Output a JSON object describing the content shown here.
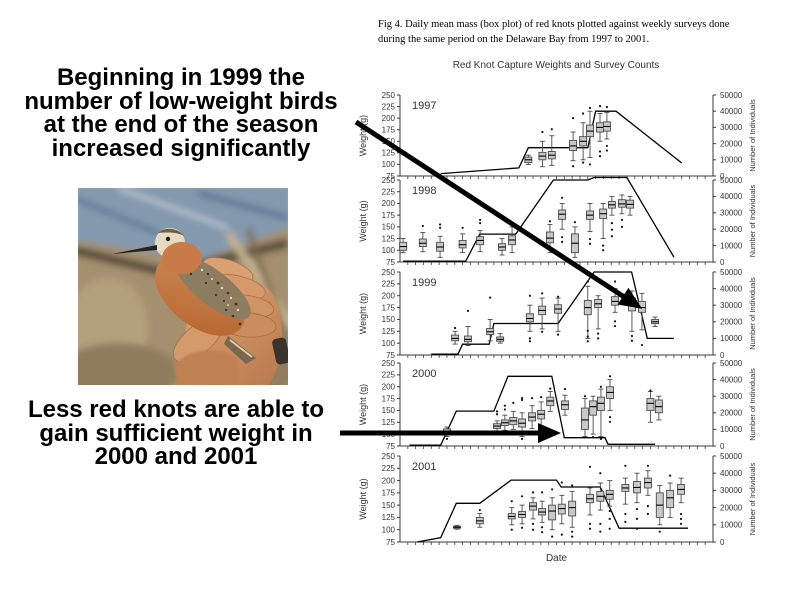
{
  "slide": {
    "caption_line1": "Fig 4. Daily mean mass (box plot) of red knots plotted against weekly surveys done",
    "caption_line2": "during the same period on the Delaware Bay from 1997 to 2001.",
    "callout_top": [
      "Beginning in 1999 the",
      "number of low-weight birds",
      "at the end of the season",
      "increased significantly"
    ],
    "callout_bottom": [
      "Less red knots are able to",
      "gain sufficient weight in",
      "2000 and 2001"
    ]
  },
  "chart_data": {
    "type": "boxplot-with-line",
    "title": "Red Knot Capture Weights and Survey Counts",
    "xlabel": "Date",
    "ylabel_left": "Weight (g)",
    "ylabel_right": "Number of Individuals",
    "weight_axis": {
      "min": 75,
      "max": 250,
      "ticks": [
        250,
        225,
        200,
        175,
        150,
        125,
        100,
        75
      ]
    },
    "count_axis": {
      "min": 0,
      "max": 50000,
      "ticks": [
        50000,
        40000,
        30000,
        20000,
        10000,
        0
      ]
    },
    "legend": "off",
    "colors": {
      "box_fill": "#c9c9c9",
      "box_stroke": "#4a4a4a",
      "survey_line": "#000000",
      "axis": "#3a3a3a",
      "text": "#333333"
    },
    "panels": [
      {
        "year": "1997",
        "survey_line": [
          [
            0.13,
            1500
          ],
          [
            0.38,
            5000
          ],
          [
            0.41,
            17500
          ],
          [
            0.6,
            17500
          ],
          [
            0.625,
            40000
          ],
          [
            0.69,
            40000
          ],
          [
            0.9,
            8000
          ]
        ],
        "boxes": [
          [
            0.41,
            100,
            104,
            110,
            116,
            120,
            []
          ],
          [
            0.455,
            95,
            110,
            118,
            126,
            150,
            [
              170
            ]
          ],
          [
            0.485,
            98,
            112,
            120,
            128,
            162,
            [
              176
            ]
          ],
          [
            0.553,
            108,
            130,
            140,
            152,
            170,
            [
              200,
              96
            ]
          ],
          [
            0.585,
            110,
            140,
            150,
            160,
            190,
            [
              210,
              104
            ]
          ],
          [
            0.607,
            115,
            160,
            172,
            185,
            215,
            [
              222,
              100
            ]
          ],
          [
            0.639,
            150,
            170,
            180,
            190,
            210,
            [
              226,
              128,
              118
            ]
          ],
          [
            0.661,
            155,
            172,
            182,
            192,
            212,
            [
              224,
              140,
              130
            ]
          ]
        ]
      },
      {
        "year": "1998",
        "survey_line": [
          [
            0.01,
            500
          ],
          [
            0.21,
            500
          ],
          [
            0.255,
            17000
          ],
          [
            0.37,
            17000
          ],
          [
            0.49,
            50000
          ],
          [
            0.6,
            50000
          ],
          [
            0.62,
            51500
          ],
          [
            0.725,
            51500
          ],
          [
            0.875,
            3000
          ]
        ],
        "boxes": [
          [
            0.01,
            95,
            100,
            108,
            117,
            125,
            []
          ],
          [
            0.073,
            97,
            108,
            115,
            124,
            138,
            [
              152
            ]
          ],
          [
            0.128,
            85,
            98,
            107,
            117,
            130,
            [
              148,
              155
            ]
          ],
          [
            0.2,
            95,
            105,
            112,
            121,
            135,
            [
              148
            ]
          ],
          [
            0.256,
            97,
            112,
            121,
            129,
            142,
            [
              158,
              165
            ]
          ],
          [
            0.326,
            90,
            100,
            107,
            114,
            125,
            [
              172
            ]
          ],
          [
            0.358,
            95,
            112,
            122,
            131,
            150,
            []
          ],
          [
            0.479,
            95,
            116,
            126,
            139,
            155,
            [
              162
            ]
          ],
          [
            0.518,
            145,
            166,
            177,
            186,
            200,
            [
              212,
              128,
              118
            ]
          ],
          [
            0.559,
            85,
            95,
            115,
            135,
            150,
            [
              160
            ]
          ],
          [
            0.607,
            140,
            166,
            175,
            184,
            200,
            [
              124,
              114
            ]
          ],
          [
            0.649,
            125,
            168,
            178,
            188,
            200,
            [
              110,
              100
            ]
          ],
          [
            0.677,
            175,
            190,
            197,
            204,
            215,
            [
              158,
              144,
              130
            ]
          ],
          [
            0.709,
            178,
            192,
            199,
            208,
            218,
            [
              165,
              150
            ]
          ],
          [
            0.735,
            175,
            190,
            198,
            207,
            215,
            []
          ]
        ]
      },
      {
        "year": "1999",
        "survey_line": [
          [
            0.1,
            500
          ],
          [
            0.185,
            500
          ],
          [
            0.2,
            6500
          ],
          [
            0.285,
            6500
          ],
          [
            0.3,
            19000
          ],
          [
            0.505,
            19000
          ],
          [
            0.62,
            50000
          ],
          [
            0.74,
            50000
          ],
          [
            0.79,
            10000
          ],
          [
            0.875,
            10000
          ]
        ],
        "boxes": [
          [
            0.176,
            98,
            105,
            110,
            117,
            125,
            [
              132
            ]
          ],
          [
            0.217,
            95,
            103,
            108,
            115,
            135,
            [
              168
            ]
          ],
          [
            0.288,
            105,
            118,
            124,
            131,
            150,
            [
              196
            ]
          ],
          [
            0.32,
            100,
            104,
            108,
            113,
            120,
            []
          ],
          [
            0.415,
            125,
            145,
            152,
            162,
            180,
            [
              200,
              110,
              104
            ]
          ],
          [
            0.454,
            130,
            160,
            169,
            178,
            195,
            [
              205,
              124
            ]
          ],
          [
            0.505,
            125,
            163,
            172,
            181,
            195,
            [
              198,
              118
            ]
          ],
          [
            0.6,
            110,
            160,
            175,
            190,
            220,
            [
              230,
              104,
              114,
              126
            ]
          ],
          [
            0.633,
            130,
            175,
            183,
            192,
            200,
            [
              120,
              110
            ]
          ],
          [
            0.687,
            165,
            180,
            188,
            198,
            215,
            [
              230,
              136,
              146
            ]
          ],
          [
            0.741,
            125,
            168,
            180,
            195,
            210,
            [
              105,
              115
            ]
          ],
          [
            0.773,
            128,
            165,
            175,
            188,
            205,
            [
              96
            ]
          ],
          [
            0.815,
            135,
            141,
            145,
            150,
            155,
            []
          ]
        ]
      },
      {
        "year": "2000",
        "survey_line": [
          [
            0.03,
            500
          ],
          [
            0.13,
            500
          ],
          [
            0.18,
            21000
          ],
          [
            0.3,
            21000
          ],
          [
            0.345,
            42000
          ],
          [
            0.485,
            42000
          ],
          [
            0.525,
            5000
          ],
          [
            0.655,
            5000
          ],
          [
            0.665,
            1000
          ],
          [
            0.815,
            1000
          ]
        ],
        "boxes": [
          [
            0.15,
            95,
            102,
            106,
            111,
            115,
            [
              90
            ]
          ],
          [
            0.31,
            105,
            112,
            117,
            122,
            128,
            [
              142,
              148
            ]
          ],
          [
            0.335,
            108,
            118,
            124,
            130,
            140,
            [
              152,
              160
            ]
          ],
          [
            0.362,
            110,
            120,
            128,
            135,
            148,
            [
              166
            ]
          ],
          [
            0.39,
            95,
            115,
            123,
            132,
            145,
            [
              172,
              176,
              90
            ]
          ],
          [
            0.422,
            112,
            128,
            136,
            145,
            160,
            [
              176,
              104
            ]
          ],
          [
            0.451,
            115,
            132,
            142,
            150,
            168,
            [
              178
            ]
          ],
          [
            0.48,
            148,
            160,
            170,
            178,
            190,
            [
              196
            ]
          ],
          [
            0.527,
            140,
            152,
            162,
            170,
            182,
            [
              195
            ]
          ],
          [
            0.591,
            95,
            110,
            130,
            155,
            175,
            [
              180
            ]
          ],
          [
            0.617,
            100,
            140,
            158,
            170,
            180,
            [
              94
            ]
          ],
          [
            0.642,
            95,
            150,
            165,
            178,
            195,
            [
              200,
              90
            ]
          ],
          [
            0.671,
            150,
            175,
            188,
            200,
            215,
            [
              222,
              126,
              136
            ]
          ],
          [
            0.8,
            125,
            150,
            165,
            175,
            190,
            [
              192
            ]
          ],
          [
            0.827,
            130,
            145,
            158,
            172,
            180,
            []
          ]
        ]
      },
      {
        "year": "2001",
        "survey_line": [
          [
            0.055,
            0
          ],
          [
            0.13,
            2500
          ],
          [
            0.18,
            22500
          ],
          [
            0.255,
            22500
          ],
          [
            0.355,
            36000
          ],
          [
            0.5,
            36000
          ],
          [
            0.515,
            32000
          ],
          [
            0.64,
            32000
          ],
          [
            0.7,
            8000
          ],
          [
            0.92,
            8000
          ]
        ],
        "boxes": [
          [
            0.182,
            101,
            103,
            105,
            107,
            109,
            []
          ],
          [
            0.255,
            105,
            112,
            118,
            125,
            133,
            [
              140
            ]
          ],
          [
            0.357,
            110,
            122,
            127,
            133,
            145,
            [
              100,
              158
            ]
          ],
          [
            0.39,
            112,
            125,
            131,
            137,
            150,
            [
              168,
              104
            ]
          ],
          [
            0.425,
            122,
            140,
            148,
            155,
            165,
            [
              100,
              112,
              176
            ]
          ],
          [
            0.454,
            115,
            130,
            136,
            143,
            158,
            [
              95,
              105,
              176
            ]
          ],
          [
            0.486,
            100,
            120,
            138,
            150,
            165,
            [
              182,
              86
            ]
          ],
          [
            0.517,
            112,
            132,
            143,
            152,
            170,
            [
              196,
              90
            ]
          ],
          [
            0.55,
            105,
            128,
            145,
            158,
            178,
            [
              86,
              96,
              190
            ]
          ],
          [
            0.607,
            130,
            155,
            163,
            172,
            185,
            [
              228,
              102,
              112
            ]
          ],
          [
            0.64,
            140,
            158,
            168,
            178,
            195,
            [
              215,
              96,
              112
            ]
          ],
          [
            0.67,
            148,
            162,
            172,
            180,
            200,
            [
              102,
              122,
              138
            ]
          ],
          [
            0.72,
            152,
            178,
            185,
            192,
            205,
            [
              230,
              116,
              132
            ]
          ],
          [
            0.757,
            155,
            175,
            186,
            198,
            215,
            [
              102,
              122,
              142
            ]
          ],
          [
            0.792,
            170,
            185,
            196,
            205,
            220,
            [
              230,
              132,
              148
            ]
          ],
          [
            0.83,
            110,
            125,
            150,
            175,
            190,
            [
              96
            ]
          ],
          [
            0.863,
            125,
            145,
            165,
            180,
            195,
            [
              210
            ]
          ],
          [
            0.898,
            155,
            172,
            182,
            192,
            205,
            [
              112,
              122,
              132
            ]
          ]
        ]
      }
    ]
  }
}
